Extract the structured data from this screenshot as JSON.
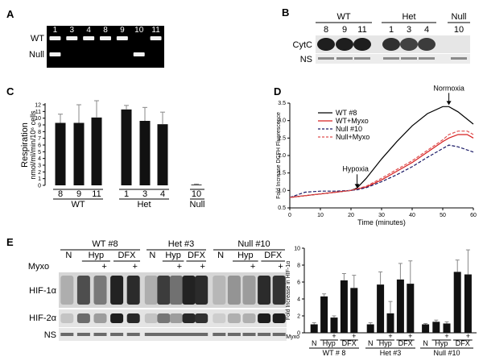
{
  "panels": {
    "A": {
      "letter": "A",
      "lanes": [
        "1",
        "3",
        "4",
        "8",
        "9",
        "10",
        "11"
      ],
      "row_labels": [
        "WT",
        "Null"
      ],
      "wt_bands": [
        true,
        true,
        true,
        true,
        true,
        false,
        true
      ],
      "null_bands": [
        true,
        false,
        false,
        false,
        false,
        true,
        false
      ]
    },
    "B": {
      "letter": "B",
      "groups": [
        "WT",
        "Het",
        "Null"
      ],
      "lanes": [
        "8",
        "9",
        "11",
        "1",
        "3",
        "4",
        "10"
      ],
      "row_labels": [
        "CytC",
        "NS"
      ],
      "cytc_intensity": [
        1.0,
        1.0,
        1.0,
        0.85,
        0.7,
        0.75,
        0.0
      ]
    },
    "C": {
      "letter": "C",
      "ylabel_line1": "Respiration",
      "ylabel_line2": "nmol/ml/min/10⁶ cells",
      "groups": [
        "WT",
        "Het",
        "Null"
      ]
    },
    "D": {
      "letter": "D",
      "ylabel": "Fold Increase DCFH Fluorescence",
      "xlabel": "Time (minutes)",
      "annotations": [
        "Hypoxia",
        "Normoxia"
      ]
    },
    "E": {
      "letter": "E",
      "group_titles": [
        "WT  #8",
        "Het #3",
        "Null #10"
      ],
      "lane_labels": [
        "N",
        "Hyp",
        "DFX"
      ],
      "myxo_label": "Myxo",
      "plus": "+",
      "row_labels": [
        "HIF-1α",
        "HIF-2α",
        "NS"
      ],
      "chart_ylabel": "Fold Increase in HIF-1α",
      "chart_groups": [
        "WT # 8",
        "Het #3",
        "Null #10"
      ],
      "chart_myxo": "Myxo"
    }
  },
  "chart_data": [
    {
      "id": "C",
      "type": "bar",
      "categories": [
        "8",
        "9",
        "11",
        "1",
        "3",
        "4",
        "10"
      ],
      "groups": [
        {
          "name": "WT",
          "categories": [
            "8",
            "9",
            "11"
          ]
        },
        {
          "name": "Het",
          "categories": [
            "1",
            "3",
            "4"
          ]
        },
        {
          "name": "Null",
          "categories": [
            "10"
          ]
        }
      ],
      "values": [
        9.3,
        9.3,
        10.1,
        11.3,
        9.6,
        9.1,
        0.1
      ],
      "errors": [
        1.3,
        2.7,
        2.5,
        0.6,
        2.0,
        1.8,
        0.1
      ],
      "ylim": [
        0,
        12
      ],
      "yticks": [
        0,
        1,
        2,
        3,
        4,
        5,
        6,
        7,
        8,
        9,
        10,
        11,
        12
      ],
      "ylabel": "Respiration nmol/ml/min/10⁶ cells"
    },
    {
      "id": "D",
      "type": "line",
      "xlim": [
        0,
        60
      ],
      "ylim": [
        0.5,
        3.5
      ],
      "xticks": [
        0,
        10,
        20,
        30,
        40,
        50,
        60
      ],
      "yticks": [
        0.5,
        1.0,
        1.5,
        2.0,
        2.5,
        3.0,
        3.5
      ],
      "xlabel": "Time (minutes)",
      "ylabel": "Fold Increase DCFH Fluorescence",
      "legend_position": "top-right",
      "series": [
        {
          "name": "WT #8",
          "color": "#000000",
          "dash": "solid",
          "x": [
            0,
            5,
            10,
            15,
            20,
            22,
            25,
            30,
            35,
            40,
            45,
            50,
            52,
            55,
            60
          ],
          "y": [
            0.8,
            0.85,
            0.9,
            0.95,
            1.0,
            1.07,
            1.35,
            1.9,
            2.4,
            2.85,
            3.2,
            3.4,
            3.4,
            3.25,
            2.9
          ]
        },
        {
          "name": "WT+Myxo",
          "color": "#d62020",
          "dash": "solid",
          "x": [
            0,
            5,
            10,
            15,
            20,
            22,
            25,
            30,
            35,
            40,
            45,
            50,
            52,
            55,
            58,
            60
          ],
          "y": [
            0.8,
            0.85,
            0.9,
            0.95,
            1.0,
            1.04,
            1.1,
            1.3,
            1.55,
            1.8,
            2.1,
            2.4,
            2.5,
            2.6,
            2.6,
            2.5
          ]
        },
        {
          "name": "Null #10",
          "color": "#1a1a66",
          "dash": "dashed",
          "x": [
            0,
            5,
            10,
            15,
            20,
            22,
            25,
            30,
            35,
            40,
            45,
            50,
            52,
            55,
            60
          ],
          "y": [
            0.8,
            0.95,
            0.98,
            0.98,
            1.0,
            1.02,
            1.08,
            1.25,
            1.45,
            1.68,
            1.95,
            2.2,
            2.3,
            2.25,
            2.1
          ]
        },
        {
          "name": "Null+Myxo",
          "color": "#e05050",
          "dash": "dashed",
          "x": [
            0,
            5,
            10,
            15,
            20,
            22,
            25,
            30,
            35,
            40,
            45,
            50,
            52,
            55,
            58,
            60
          ],
          "y": [
            0.8,
            0.85,
            0.9,
            0.95,
            1.0,
            1.05,
            1.12,
            1.35,
            1.6,
            1.85,
            2.15,
            2.45,
            2.6,
            2.7,
            2.7,
            2.6
          ]
        }
      ],
      "annotations": [
        {
          "text": "Hypoxia",
          "x": 22,
          "y": 1.0
        },
        {
          "text": "Normoxia",
          "x": 52,
          "y": 3.4
        }
      ]
    },
    {
      "id": "E",
      "type": "bar",
      "groups": [
        "WT # 8",
        "Het #3",
        "Null #10"
      ],
      "categories": [
        "N",
        "Hyp",
        "Hyp+Myxo",
        "DFX",
        "DFX+Myxo"
      ],
      "values": [
        [
          1.0,
          4.3,
          1.8,
          6.2,
          5.3
        ],
        [
          1.0,
          5.7,
          2.3,
          6.3,
          5.8
        ],
        [
          1.0,
          1.3,
          1.1,
          7.2,
          6.9
        ]
      ],
      "errors": [
        [
          0.2,
          0.3,
          0.2,
          0.8,
          1.5
        ],
        [
          0.2,
          1.5,
          1.4,
          1.9,
          2.7
        ],
        [
          0.1,
          0.2,
          0.2,
          1.4,
          2.9
        ]
      ],
      "ylim": [
        0,
        10
      ],
      "yticks": [
        0,
        2,
        4,
        6,
        8,
        10
      ],
      "ylabel": "Fold Increase in HIF-1α"
    }
  ]
}
